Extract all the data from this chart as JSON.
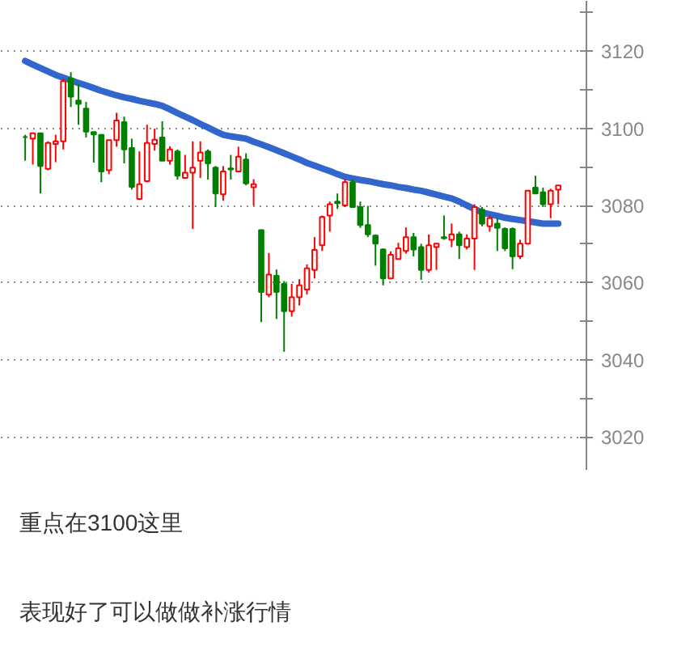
{
  "chart_data": {
    "type": "candlestick",
    "categories": [
      null,
      null,
      null,
      null,
      null,
      null,
      null,
      null,
      null,
      null,
      null,
      null,
      null,
      null,
      null,
      null,
      null,
      null,
      null,
      null,
      null,
      null,
      null,
      null,
      null,
      null,
      null,
      null,
      null,
      null,
      null,
      null,
      null,
      null,
      null,
      null,
      null,
      null,
      null,
      null,
      null,
      null,
      null,
      null,
      null,
      null,
      null,
      null,
      null,
      null,
      null,
      null,
      null,
      null,
      null,
      null,
      null,
      null,
      null,
      null,
      null,
      null,
      null,
      null,
      null,
      null,
      null,
      null,
      null,
      null,
      null
    ],
    "ohlc": [
      [
        3097.7,
        3098.3,
        3091.6,
        3097.7
      ],
      [
        3097.3,
        3098.7,
        3090.6,
        3098.7
      ],
      [
        3098.7,
        3098.7,
        3083.1,
        3090.2
      ],
      [
        3089.5,
        3096.6,
        3089.1,
        3096.2
      ],
      [
        3095.9,
        3098.3,
        3091.2,
        3096.6
      ],
      [
        3096.6,
        3112.9,
        3094.5,
        3112.2
      ],
      [
        3112.9,
        3114.5,
        3105.5,
        3108.2
      ],
      [
        3107.2,
        3111.5,
        3100.9,
        3106.3
      ],
      [
        3105.1,
        3106.8,
        3097.6,
        3099.1
      ],
      [
        3099.0,
        3099.0,
        3091.1,
        3098.4
      ],
      [
        3098.3,
        3098.3,
        3086.0,
        3088.8
      ],
      [
        3089.1,
        3096.9,
        3088.1,
        3096.9
      ],
      [
        3096.9,
        3104.0,
        3095.2,
        3102.0
      ],
      [
        3101.6,
        3103.0,
        3090.9,
        3094.5
      ],
      [
        3094.9,
        3097.3,
        3084.1,
        3084.8
      ],
      [
        3081.7,
        3094.0,
        3081.4,
        3085.5
      ],
      [
        3086.3,
        3100.9,
        3086.0,
        3096.2
      ],
      [
        3095.9,
        3099.9,
        3094.2,
        3097.0
      ],
      [
        3097.6,
        3101.8,
        3091.6,
        3091.6
      ],
      [
        3091.6,
        3095.3,
        3090.6,
        3094.5
      ],
      [
        3094.0,
        3094.5,
        3086.7,
        3087.7
      ],
      [
        3087.1,
        3093.1,
        3087.1,
        3088.5
      ],
      [
        3088.5,
        3096.6,
        3073.9,
        3089.8
      ],
      [
        3091.6,
        3096.6,
        3087.1,
        3093.7
      ],
      [
        3094.0,
        3094.5,
        3086.7,
        3090.9
      ],
      [
        3089.8,
        3090.2,
        3079.6,
        3083.1
      ],
      [
        3082.9,
        3090.2,
        3081.2,
        3088.8
      ],
      [
        3089.6,
        3093.1,
        3086.7,
        3089.3
      ],
      [
        3088.8,
        3095.2,
        3088.8,
        3092.6
      ],
      [
        3091.9,
        3093.5,
        3085.2,
        3085.7
      ],
      [
        3084.7,
        3086.8,
        3080.0,
        3085.5
      ],
      [
        3073.6,
        3073.6,
        3049.8,
        3057.6
      ],
      [
        3056.9,
        3067.7,
        3056.2,
        3062.1
      ],
      [
        3061.8,
        3063.4,
        3050.6,
        3057.6
      ],
      [
        3059.7,
        3060.4,
        3042.1,
        3052.6
      ],
      [
        3052.6,
        3059.7,
        3051.2,
        3056.2
      ],
      [
        3056.2,
        3060.9,
        3054.1,
        3059.3
      ],
      [
        3058.2,
        3064.7,
        3056.9,
        3063.7
      ],
      [
        3063.3,
        3071.8,
        3061.1,
        3068.5
      ],
      [
        3069.7,
        3077.4,
        3068.2,
        3077.0
      ],
      [
        3077.4,
        3081.0,
        3073.2,
        3080.3
      ],
      [
        3081.0,
        3083.1,
        3079.1,
        3080.6
      ],
      [
        3080.0,
        3086.9,
        3079.6,
        3086.0
      ],
      [
        3086.0,
        3086.8,
        3079.6,
        3079.6
      ],
      [
        3079.6,
        3081.0,
        3074.2,
        3074.9
      ],
      [
        3074.9,
        3079.9,
        3071.8,
        3072.5
      ],
      [
        3072.2,
        3072.5,
        3064.4,
        3070.1
      ],
      [
        3068.6,
        3068.9,
        3059.3,
        3061.1
      ],
      [
        3061.1,
        3068.1,
        3061.1,
        3067.2
      ],
      [
        3066.1,
        3070.3,
        3066.1,
        3068.9
      ],
      [
        3068.2,
        3074.3,
        3067.5,
        3071.8
      ],
      [
        3071.8,
        3072.9,
        3066.8,
        3068.6
      ],
      [
        3069.2,
        3070.1,
        3060.7,
        3063.3
      ],
      [
        3063.3,
        3072.5,
        3062.6,
        3069.7
      ],
      [
        3069.2,
        3070.1,
        3063.3,
        3070.1
      ],
      [
        3071.8,
        3077.4,
        3071.1,
        3071.5
      ],
      [
        3071.1,
        3075.3,
        3069.2,
        3072.5
      ],
      [
        3072.5,
        3073.2,
        3066.1,
        3069.7
      ],
      [
        3069.2,
        3072.5,
        3068.6,
        3071.4
      ],
      [
        3071.4,
        3080.3,
        3063.3,
        3079.6
      ],
      [
        3078.9,
        3079.6,
        3074.6,
        3075.3
      ],
      [
        3074.6,
        3077.4,
        3073.2,
        3076.7
      ],
      [
        3075.3,
        3076.7,
        3068.2,
        3074.2
      ],
      [
        3073.9,
        3074.3,
        3068.2,
        3068.9
      ],
      [
        3073.9,
        3074.3,
        3063.5,
        3066.8
      ],
      [
        3066.8,
        3071.1,
        3066.1,
        3070.1
      ],
      [
        3070.1,
        3083.8,
        3069.9,
        3083.8
      ],
      [
        3084.6,
        3087.7,
        3083.1,
        3083.1
      ],
      [
        3083.4,
        3084.6,
        3079.6,
        3080.3
      ],
      [
        3080.3,
        3084.3,
        3076.7,
        3083.8
      ],
      [
        3084.1,
        3085.2,
        3080.3,
        3085.2
      ]
    ],
    "colors": [
      "#008000",
      "#ff0000",
      "#008000",
      "#ff0000",
      "#ff0000",
      "#ff0000",
      "#008000",
      "#008000",
      "#008000",
      "#008000",
      "#008000",
      "#ff0000",
      "#ff0000",
      "#008000",
      "#008000",
      "#ff0000",
      "#ff0000",
      "#ff0000",
      "#008000",
      "#ff0000",
      "#008000",
      "#ff0000",
      "#ff0000",
      "#ff0000",
      "#008000",
      "#008000",
      "#ff0000",
      "#008000",
      "#ff0000",
      "#008000",
      "#ff0000",
      "#008000",
      "#ff0000",
      "#008000",
      "#008000",
      "#ff0000",
      "#ff0000",
      "#ff0000",
      "#ff0000",
      "#ff0000",
      "#ff0000",
      "#008000",
      "#ff0000",
      "#008000",
      "#008000",
      "#008000",
      "#008000",
      "#008000",
      "#ff0000",
      "#ff0000",
      "#ff0000",
      "#008000",
      "#008000",
      "#ff0000",
      "#ff0000",
      "#008000",
      "#ff0000",
      "#008000",
      "#ff0000",
      "#ff0000",
      "#008000",
      "#ff0000",
      "#008000",
      "#008000",
      "#008000",
      "#ff0000",
      "#ff0000",
      "#008000",
      "#008000",
      "#ff0000",
      "#ff0000"
    ],
    "series": [
      {
        "type": "line",
        "color": "#3366cc",
        "values": [
          3117.4,
          3116.5,
          3115.6,
          3114.7,
          3113.8,
          3113.1,
          3112.4,
          3111.7,
          3111.1,
          3110.4,
          3109.7,
          3109.1,
          3108.5,
          3108.0,
          3107.6,
          3107.1,
          3106.7,
          3106.3,
          3105.8,
          3104.9,
          3103.9,
          3103.0,
          3102.1,
          3101.1,
          3100.2,
          3099.2,
          3098.3,
          3097.9,
          3097.6,
          3097.3,
          3096.5,
          3095.8,
          3095.1,
          3094.3,
          3093.5,
          3092.7,
          3091.9,
          3091.0,
          3090.3,
          3089.6,
          3088.9,
          3088.1,
          3087.4,
          3087.0,
          3086.6,
          3086.3,
          3085.9,
          3085.5,
          3085.2,
          3084.8,
          3084.5,
          3084.1,
          3083.8,
          3083.3,
          3082.8,
          3082.3,
          3081.8,
          3081.0,
          3080.0,
          3079.1,
          3078.2,
          3077.7,
          3077.3,
          3076.8,
          3076.5,
          3076.2,
          3075.9,
          3075.6,
          3075.3,
          3075.3,
          3075.3
        ]
      }
    ],
    "ylim": [
      3011.5,
      3133
    ],
    "yticks": [
      {
        "value": 3020,
        "label": "3020"
      },
      {
        "value": 3030,
        "label": null
      },
      {
        "value": 3040,
        "label": "3040"
      },
      {
        "value": 3050,
        "label": null
      },
      {
        "value": 3060,
        "label": "3060"
      },
      {
        "value": 3070,
        "label": null
      },
      {
        "value": 3080,
        "label": "3080"
      },
      {
        "value": 3090,
        "label": null
      },
      {
        "value": 3100,
        "label": "3100"
      },
      {
        "value": 3110,
        "label": null
      },
      {
        "value": 3120,
        "label": "3120"
      },
      {
        "value": 3130,
        "label": null
      }
    ],
    "grid": "y",
    "tick_labels": "y",
    "annotations": [
      "重点在3100这里",
      "表现好了可以做做补涨行情"
    ]
  }
}
